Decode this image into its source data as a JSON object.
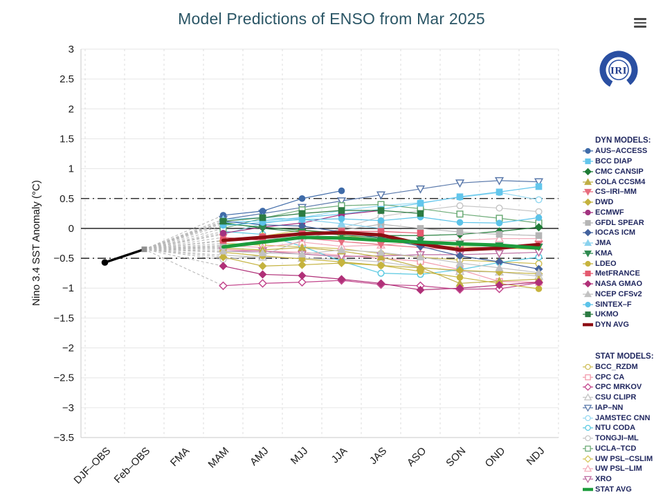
{
  "header": {
    "title": "Model Predictions of ENSO from Mar 2025"
  },
  "menu": {
    "icon": "hamburger-icon"
  },
  "logo": {
    "text": "IRI",
    "color": "#2a4fa2"
  },
  "chart_data": {
    "type": "line",
    "title": "Model Predictions of ENSO from Mar 2025",
    "ylabel": "Nino 3.4 SST Anomaly (°C)",
    "ylim": [
      -3.5,
      3
    ],
    "yticks": [
      "3",
      "2.5",
      "2",
      "1.5",
      "1",
      "0.5",
      "0",
      "−0.5",
      "−1",
      "−1.5",
      "−2",
      "−2.5",
      "−3",
      "−3.5"
    ],
    "ytick_values": [
      3,
      2.5,
      2,
      1.5,
      1,
      0.5,
      0,
      -0.5,
      -1,
      -1.5,
      -2,
      -2.5,
      -3,
      -3.5
    ],
    "categories": [
      "DJF–OBS",
      "Feb–OBS",
      "FMA",
      "MAM",
      "AMJ",
      "MJJ",
      "JJA",
      "JAS",
      "ASO",
      "SON",
      "OND",
      "NDJ"
    ],
    "forecast_start_index": 3,
    "grid": true,
    "legend_position": "right",
    "reference_lines": [
      {
        "value": 0,
        "style": "solid"
      },
      {
        "value": 0.5,
        "style": "dashdot"
      },
      {
        "value": -0.5,
        "style": "dashdot"
      }
    ],
    "observations": {
      "name": "OBS",
      "color": "#000000",
      "x": [
        "DJF–OBS",
        "Feb–OBS"
      ],
      "values": [
        -0.57,
        -0.35
      ]
    },
    "legend": {
      "dyn_header": "DYN MODELS:",
      "stat_header": "STAT MODELS:"
    },
    "series_dyn": [
      {
        "name": "AUS–ACCESS",
        "color": "#3f6ba8",
        "marker": "circle",
        "open": false,
        "values": [
          0.22,
          0.29,
          0.5,
          0.63,
          null,
          null,
          null,
          null,
          null
        ]
      },
      {
        "name": "BCC DIAP",
        "color": "#63c6ec",
        "marker": "square",
        "open": false,
        "values": [
          0.1,
          0.13,
          0.18,
          0.24,
          0.32,
          0.42,
          0.53,
          0.61,
          0.7
        ]
      },
      {
        "name": "CMC CANSIP",
        "color": "#1e7b36",
        "marker": "diamond",
        "open": false,
        "values": [
          0.08,
          0.02,
          -0.03,
          -0.08,
          -0.12,
          -0.12,
          -0.1,
          -0.05,
          0.02
        ]
      },
      {
        "name": "COLA CCSM4",
        "color": "#c0ae45",
        "marker": "triangle-up",
        "open": false,
        "values": [
          -0.33,
          -0.36,
          -0.32,
          -0.38,
          -0.48,
          -0.65,
          -0.92,
          -0.88,
          -0.85
        ]
      },
      {
        "name": "CS–IRI–MM",
        "color": "#e76d7e",
        "marker": "triangle-down",
        "open": false,
        "values": [
          -0.15,
          -0.2,
          -0.16,
          -0.22,
          -0.27,
          -0.32,
          -0.36,
          -0.31,
          -0.26
        ]
      },
      {
        "name": "DWD",
        "color": "#c4b23e",
        "marker": "diamond",
        "open": false,
        "values": [
          -0.48,
          -0.63,
          -0.61,
          -0.58,
          -0.62,
          -0.66,
          -0.7,
          -0.73,
          -0.76
        ]
      },
      {
        "name": "ECMWF",
        "color": "#a23380",
        "marker": "circle",
        "open": false,
        "values": [
          -0.08,
          0.02,
          0.09,
          0.23,
          0.3,
          null,
          null,
          null,
          null
        ]
      },
      {
        "name": "GFDL SPEAR",
        "color": "#b5b5b5",
        "marker": "square",
        "open": false,
        "values": [
          -0.3,
          -0.2,
          -0.1,
          -0.03,
          0.07,
          0.0,
          -0.06,
          -0.1,
          -0.12
        ]
      },
      {
        "name": "IOCAS ICM",
        "color": "#44639e",
        "marker": "diamond",
        "open": false,
        "values": [
          0.12,
          0.06,
          0.04,
          -0.06,
          -0.16,
          -0.3,
          -0.46,
          -0.56,
          -0.68
        ]
      },
      {
        "name": "JMA",
        "color": "#8ad2ee",
        "marker": "triangle-up",
        "open": false,
        "values": [
          0.15,
          0.18,
          0.15,
          0.08,
          0.0,
          null,
          null,
          null,
          null
        ]
      },
      {
        "name": "KMA",
        "color": "#2f8a50",
        "marker": "triangle-down",
        "open": false,
        "values": [
          0.1,
          0.0,
          -0.06,
          -0.11,
          -0.16,
          -0.21,
          -0.26,
          -0.29,
          -0.31
        ]
      },
      {
        "name": "LDEO",
        "color": "#c7b43e",
        "marker": "circle",
        "open": false,
        "values": [
          -0.4,
          -0.46,
          -0.51,
          -0.56,
          -0.62,
          -0.72,
          -0.82,
          -0.92,
          -1.01
        ]
      },
      {
        "name": "MetFRANCE",
        "color": "#e4596f",
        "marker": "square",
        "open": false,
        "values": [
          -0.2,
          -0.14,
          -0.09,
          -0.05,
          -0.05,
          -0.08,
          null,
          null,
          null
        ]
      },
      {
        "name": "NASA GMAO",
        "color": "#b03078",
        "marker": "diamond",
        "open": false,
        "values": [
          -0.63,
          -0.77,
          -0.79,
          -0.85,
          -0.92,
          -1.03,
          -1.0,
          -0.95,
          -0.9
        ]
      },
      {
        "name": "NCEP CFSv2",
        "color": "#c2c2c2",
        "marker": "triangle-up",
        "open": false,
        "values": [
          -0.38,
          -0.41,
          -0.43,
          -0.36,
          -0.4,
          -0.48,
          -0.58,
          -0.66,
          -0.74
        ]
      },
      {
        "name": "SINTEX–F",
        "color": "#5cc3e9",
        "marker": "circle",
        "open": false,
        "values": [
          0.05,
          0.1,
          0.15,
          0.16,
          0.13,
          0.19,
          0.1,
          0.09,
          0.18
        ]
      },
      {
        "name": "UKMO",
        "color": "#2c7b42",
        "marker": "square",
        "open": false,
        "values": [
          0.12,
          0.18,
          0.25,
          0.3,
          0.3,
          0.25,
          null,
          null,
          null
        ]
      },
      {
        "name": "DYN AVG",
        "color": "#8e0e14",
        "marker": "line",
        "avg": true,
        "values": [
          -0.2,
          -0.15,
          -0.09,
          -0.07,
          -0.11,
          -0.26,
          -0.36,
          -0.33,
          -0.27
        ]
      }
    ],
    "series_stat": [
      {
        "name": "BCC_RZDM",
        "color": "#cfbe57",
        "marker": "circle",
        "open": true,
        "values": [
          -0.25,
          -0.28,
          -0.31,
          -0.34,
          -0.42,
          -0.48,
          -0.53,
          -0.56,
          -0.59
        ]
      },
      {
        "name": "CPC CA",
        "color": "#f29aab",
        "marker": "square",
        "open": true,
        "values": [
          -0.35,
          -0.38,
          -0.4,
          -0.45,
          -0.5,
          -0.55,
          -0.69,
          -0.89,
          -0.9
        ]
      },
      {
        "name": "CPC MRKOV",
        "color": "#c2458c",
        "marker": "diamond",
        "open": true,
        "values": [
          -0.96,
          -0.92,
          -0.9,
          -0.87,
          -0.94,
          -0.96,
          -1.02,
          -1.01,
          -0.91
        ]
      },
      {
        "name": "CSU CLIPR",
        "color": "#c3c3c3",
        "marker": "triangle-up",
        "open": true,
        "values": [
          -0.45,
          -0.48,
          -0.5,
          -0.52,
          -0.56,
          -0.65,
          -0.72,
          -0.73,
          -0.8
        ]
      },
      {
        "name": "IAP–NN",
        "color": "#5a79ab",
        "marker": "triangle-down",
        "open": true,
        "values": [
          0.15,
          0.25,
          0.35,
          0.46,
          0.56,
          0.66,
          0.76,
          0.8,
          0.78
        ]
      },
      {
        "name": "JAMSTEC CNN",
        "color": "#97d9f1",
        "marker": "circle",
        "open": true,
        "values": [
          -0.1,
          0.08,
          0.18,
          0.3,
          0.38,
          0.43,
          0.52,
          0.6,
          0.48
        ]
      },
      {
        "name": "NTU CODA",
        "color": "#5ac9e1",
        "marker": "circle",
        "open": true,
        "values": [
          -0.05,
          -0.1,
          -0.3,
          -0.55,
          -0.75,
          -0.77,
          -0.69,
          -0.57,
          -0.48
        ]
      },
      {
        "name": "TONGJI–ML",
        "color": "#c6c6c6",
        "marker": "circle",
        "open": true,
        "values": [
          -0.52,
          -0.45,
          -0.2,
          0.0,
          0.2,
          0.3,
          0.38,
          0.34,
          0.28
        ]
      },
      {
        "name": "UCLA–TCD",
        "color": "#6cab77",
        "marker": "square",
        "open": true,
        "values": [
          0.0,
          0.17,
          0.31,
          0.38,
          0.4,
          0.33,
          0.24,
          0.17,
          0.09
        ]
      },
      {
        "name": "UW PSL–CSLIM",
        "color": "#d7c75b",
        "marker": "diamond",
        "open": true,
        "values": [
          -0.21,
          -0.13,
          -0.03,
          -0.11,
          -0.2,
          -0.28,
          -0.31,
          -0.33,
          -0.35
        ]
      },
      {
        "name": "UW PSL–LIM",
        "color": "#f3abba",
        "marker": "triangle-up",
        "open": true,
        "values": [
          -0.28,
          -0.32,
          -0.23,
          -0.3,
          -0.28,
          -0.22,
          -0.2,
          -0.17,
          -0.17
        ]
      },
      {
        "name": "XRO",
        "color": "#bb6ba0",
        "marker": "triangle-down",
        "open": true,
        "values": [
          -0.38,
          -0.38,
          -0.43,
          -0.47,
          -0.46,
          -0.44,
          -0.44,
          -0.42,
          -0.4
        ]
      },
      {
        "name": "STAT AVG",
        "color": "#1c9c3c",
        "marker": "line",
        "avg": true,
        "values": [
          -0.31,
          -0.23,
          -0.15,
          -0.16,
          -0.2,
          -0.23,
          -0.26,
          -0.28,
          -0.33
        ]
      }
    ]
  }
}
